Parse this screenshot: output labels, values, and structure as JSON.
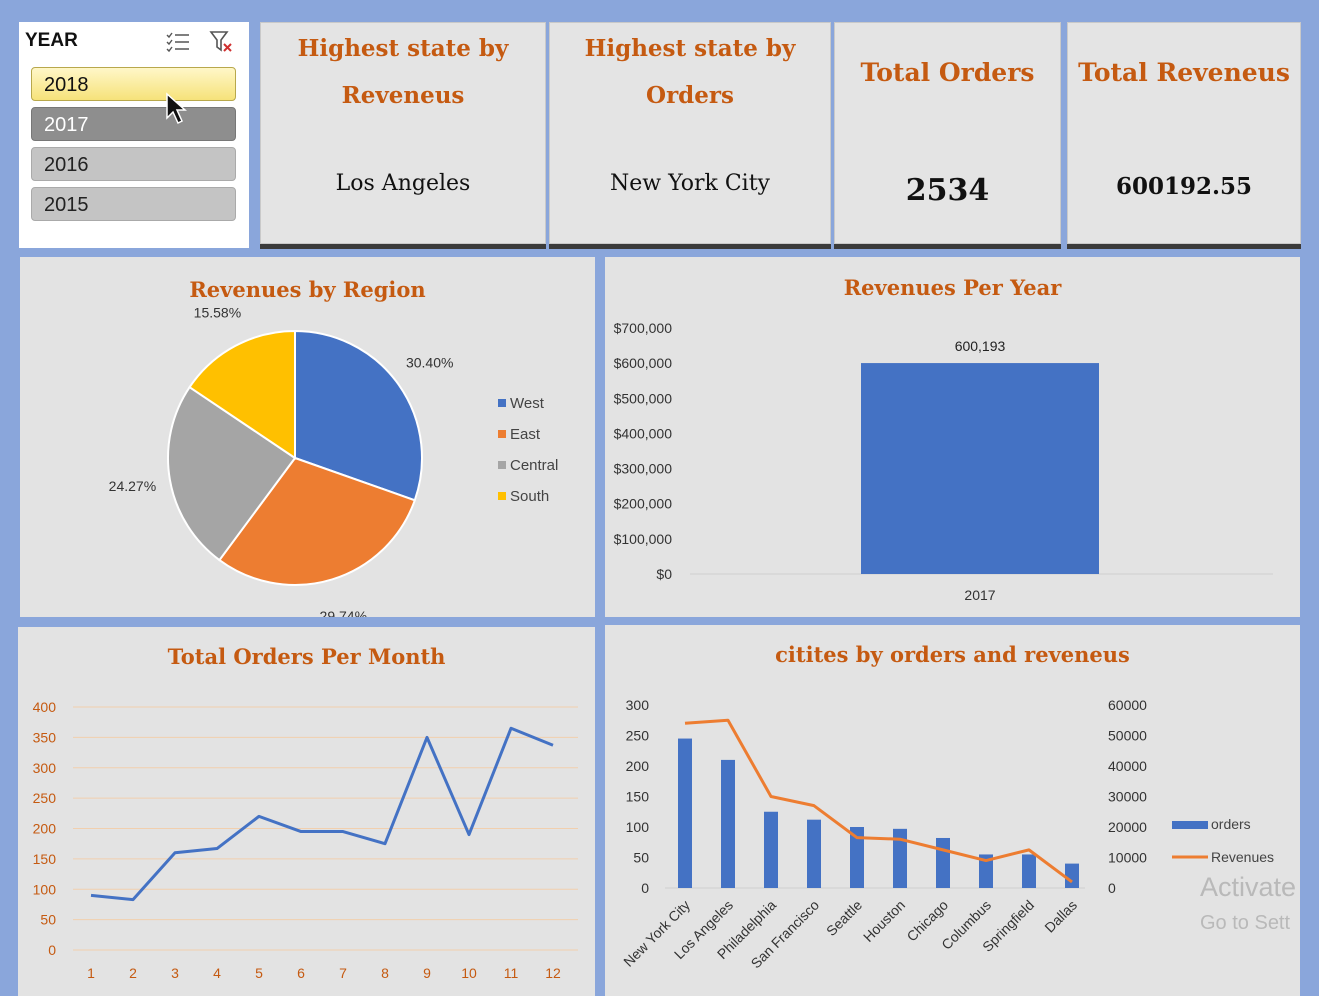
{
  "slicer": {
    "header": "YEAR",
    "items": [
      "2018",
      "2017",
      "2016",
      "2015"
    ],
    "selected": "2018"
  },
  "cards": [
    {
      "title_line1": "Highest state by",
      "title_line2": "Reveneus",
      "value": "Los Angeles"
    },
    {
      "title_line1": "Highest state by",
      "title_line2": "Orders",
      "value": "New York City"
    },
    {
      "title": "Total Orders",
      "value": "2534"
    },
    {
      "title": "Total Reveneus",
      "value": "600192.55"
    }
  ],
  "charts": {
    "region_title": "Revenues by Region",
    "year_title": "Revenues Per Year",
    "month_title": "Total Orders Per Month",
    "cities_title": "citites by orders and reveneus"
  },
  "chart_data": [
    {
      "type": "pie",
      "title": "Revenues by Region",
      "labels": [
        "West",
        "East",
        "Central",
        "South"
      ],
      "values": [
        30.4,
        29.74,
        24.27,
        15.58
      ],
      "value_labels": [
        "30.40%",
        "29.74%",
        "24.27%",
        "15.58%"
      ],
      "colors": [
        "#4472c4",
        "#ed7d31",
        "#a5a5a5",
        "#ffc000"
      ],
      "legend": "right"
    },
    {
      "type": "bar",
      "title": "Revenues Per Year",
      "categories": [
        "2017"
      ],
      "values": [
        600193
      ],
      "data_labels": [
        "600,193"
      ],
      "ylim": [
        0,
        700000
      ],
      "yticks": [
        "$0",
        "$100,000",
        "$200,000",
        "$300,000",
        "$400,000",
        "$500,000",
        "$600,000",
        "$700,000"
      ],
      "color": "#4472c4"
    },
    {
      "type": "line",
      "title": "Total Orders Per Month",
      "x": [
        1,
        2,
        3,
        4,
        5,
        6,
        7,
        8,
        9,
        10,
        11,
        12
      ],
      "values": [
        90,
        83,
        160,
        167,
        220,
        195,
        195,
        175,
        350,
        190,
        365,
        337
      ],
      "ylim": [
        0,
        400
      ],
      "yticks": [
        0,
        50,
        100,
        150,
        200,
        250,
        300,
        350,
        400
      ],
      "grid": true,
      "color": "#4472c4"
    },
    {
      "type": "bar",
      "title": "citites by orders and reveneus",
      "categories": [
        "New York City",
        "Los Angeles",
        "Philadelphia",
        "San Francisco",
        "Seattle",
        "Houston",
        "Chicago",
        "Columbus",
        "Springfield",
        "Dallas"
      ],
      "series": [
        {
          "name": "orders",
          "type": "bar",
          "axis": "left",
          "color": "#4472c4",
          "values": [
            245,
            210,
            125,
            112,
            100,
            97,
            82,
            55,
            55,
            40
          ]
        },
        {
          "name": "Revenues",
          "type": "line",
          "axis": "right",
          "color": "#ed7d31",
          "values": [
            54000,
            55000,
            30000,
            27000,
            16500,
            16000,
            12500,
            9000,
            12500,
            2000
          ]
        }
      ],
      "ylim_left": [
        0,
        300
      ],
      "yticks_left": [
        0,
        50,
        100,
        150,
        200,
        250,
        300
      ],
      "ylim_right": [
        0,
        60000
      ],
      "yticks_right": [
        0,
        10000,
        20000,
        30000,
        40000,
        50000,
        60000
      ],
      "legend": "right"
    }
  ],
  "watermark": {
    "line1": "Activate",
    "line2": "Go to Sett"
  }
}
